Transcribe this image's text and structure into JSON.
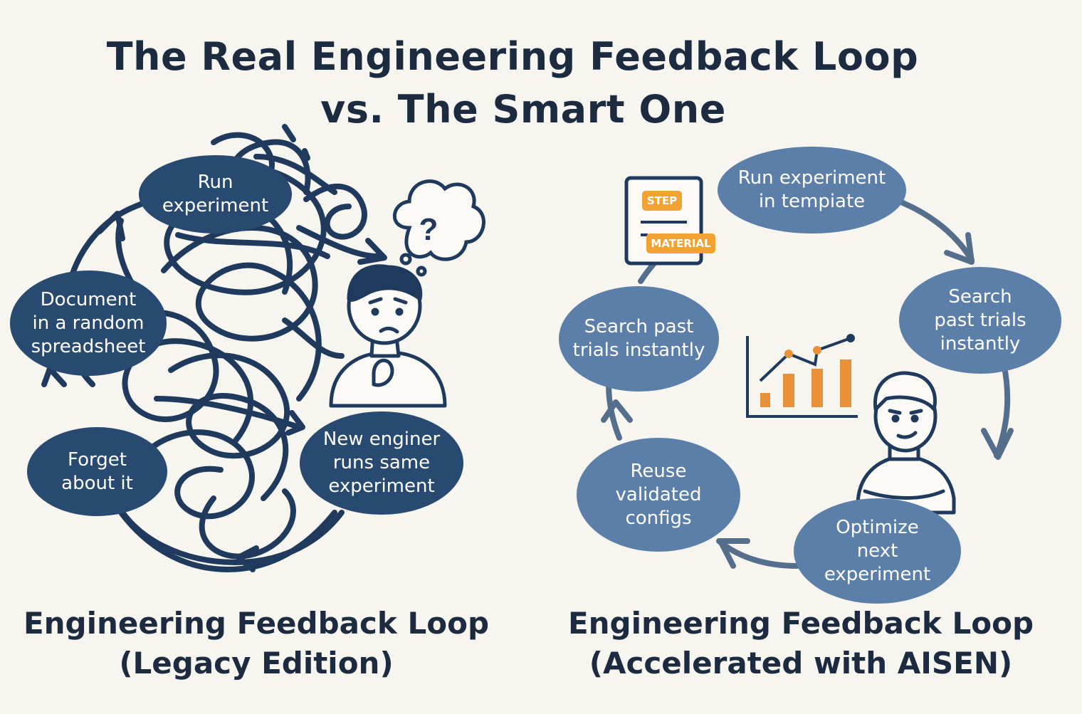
{
  "title": {
    "line1": "The Real Engineering Feedback Loop",
    "line2": "vs. The Smart One"
  },
  "legacy": {
    "caption_line1": "Engineering Feedback Loop",
    "caption_line2": "(Legacy Edition)",
    "nodes": [
      "Run\nexperiment",
      "Document\nin a random\nspreadsheet",
      "Forget\nabout it",
      "New enginer\nruns same\nexperiment"
    ],
    "thought": "?"
  },
  "smart": {
    "caption_line1": "Engineering Feedback Loop",
    "caption_line2": "(Accelerated with AISEN)",
    "nodes": [
      "Run experiment\nin tempiate",
      "Search\npast trials\ninstantly",
      "Optimize\nnext\nexperiment",
      "Reuse\nvalidated\nconfigs",
      "Search past\ntrials instantly"
    ],
    "doc_badges": [
      "STEP",
      "MATERIAL"
    ],
    "chart_bars": [
      1,
      2,
      3,
      4
    ]
  },
  "colors": {
    "dark_node": "#294a70",
    "light_node": "#5b7fa8",
    "accent": "#f0a233",
    "ink": "#1c2b3f"
  }
}
